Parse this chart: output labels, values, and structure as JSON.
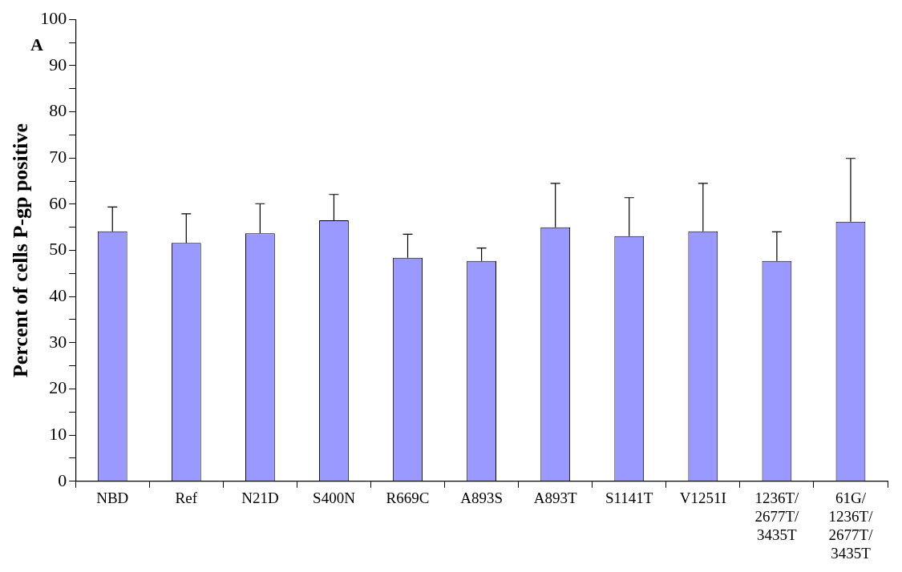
{
  "chart_data": {
    "type": "bar",
    "ylabel": "Percent of cells P-gp positive",
    "annotations": [
      "A"
    ],
    "categories": [
      "NBD",
      "Ref",
      "N21D",
      "S400N",
      "R669C",
      "A893S",
      "A893T",
      "S1141T",
      "V1251I",
      "1236T/2677T/3435T",
      "61G/1236T/2677T/3435T"
    ],
    "values": [
      54.1,
      51.6,
      53.7,
      56.5,
      48.4,
      47.7,
      55.0,
      53.1,
      54.1,
      47.7,
      56.2
    ],
    "errors": [
      [
        54.1,
        59.4
      ],
      [
        51.6,
        57.9
      ],
      [
        53.7,
        60.1
      ],
      [
        56.5,
        62.1
      ],
      [
        48.4,
        53.5
      ],
      [
        47.7,
        50.5
      ],
      [
        55.0,
        64.5
      ],
      [
        53.1,
        61.4
      ],
      [
        54.1,
        64.5
      ],
      [
        47.7,
        54.0
      ],
      [
        56.2,
        69.9
      ]
    ],
    "color": "#9999ff",
    "ylim": [
      0,
      100
    ],
    "yticks": [
      0,
      {
        "value": 5,
        "label": null
      },
      10,
      {
        "value": 15,
        "label": null
      },
      20,
      {
        "value": 25,
        "label": null
      },
      30,
      {
        "value": 35,
        "label": null
      },
      40,
      {
        "value": 45,
        "label": null
      },
      50,
      {
        "value": 55,
        "label": null
      },
      60,
      {
        "value": 65,
        "label": null
      },
      70,
      {
        "value": 75,
        "label": null
      },
      80,
      {
        "value": 85,
        "label": null
      },
      90,
      {
        "value": 95,
        "label": null
      },
      100
    ],
    "grid": false,
    "legend": false
  }
}
